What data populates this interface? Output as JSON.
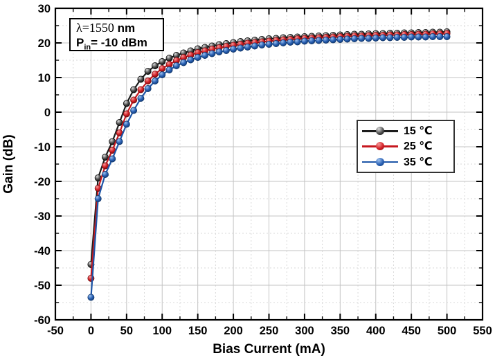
{
  "annotation": {
    "lambda": "λ=1550",
    "lambda_unit": " nm",
    "pin_base": "P",
    "pin_sub": "in",
    "pin_rest": "= -10 dBm"
  },
  "chart_data": {
    "type": "line",
    "title": "",
    "xlabel": "Bias Current (mA)",
    "ylabel": "Gain (dB)",
    "xlim": [
      -50,
      550
    ],
    "ylim": [
      -60,
      30
    ],
    "xticks": [
      -50,
      0,
      50,
      100,
      150,
      200,
      250,
      300,
      350,
      400,
      450,
      500,
      550
    ],
    "yticks": [
      -60,
      -50,
      -40,
      -30,
      -20,
      -10,
      0,
      10,
      20,
      30
    ],
    "x_minor_step": 25,
    "y_minor_step": 5,
    "grid": "major-solid-gray, minor-dotted",
    "legend_position": "right-center",
    "x": [
      0,
      10,
      20,
      30,
      40,
      50,
      60,
      70,
      80,
      90,
      100,
      110,
      120,
      130,
      140,
      150,
      160,
      170,
      180,
      190,
      200,
      210,
      220,
      230,
      240,
      250,
      260,
      270,
      280,
      290,
      300,
      310,
      320,
      330,
      340,
      350,
      360,
      370,
      380,
      390,
      400,
      410,
      420,
      430,
      440,
      450,
      460,
      470,
      480,
      490,
      500
    ],
    "series": [
      {
        "name": "15 ℃",
        "line_color": "#1c1c1c",
        "marker_light": "#dcdcdc",
        "marker_mid": "#4d4d4d",
        "marker_dark": "#050505",
        "edge_color": "#000000",
        "values": [
          -44,
          -19,
          -13,
          -8.5,
          -3,
          2.5,
          6.5,
          9.5,
          11.8,
          13.4,
          14.6,
          15.6,
          16.4,
          17.1,
          17.7,
          18.3,
          18.7,
          19.1,
          19.5,
          19.8,
          20.1,
          20.4,
          20.6,
          20.8,
          21.0,
          21.2,
          21.3,
          21.5,
          21.6,
          21.7,
          21.8,
          21.9,
          22.0,
          22.1,
          22.2,
          22.3,
          22.4,
          22.5,
          22.5,
          22.6,
          22.7,
          22.7,
          22.8,
          22.8,
          22.9,
          22.9,
          23.0,
          23.0,
          23.1,
          23.1,
          23.2
        ]
      },
      {
        "name": "25 ℃",
        "line_color": "#c6171e",
        "marker_light": "#f59a9a",
        "marker_mid": "#d42026",
        "marker_dark": "#7e0a0e",
        "edge_color": "#6e090c",
        "values": [
          -48,
          -22,
          -15.5,
          -11,
          -6,
          -0.5,
          3.5,
          6.5,
          9,
          11,
          12.6,
          13.8,
          14.9,
          15.8,
          16.5,
          17.2,
          17.7,
          18.2,
          18.6,
          19.0,
          19.3,
          19.6,
          19.9,
          20.1,
          20.3,
          20.5,
          20.7,
          20.9,
          21.0,
          21.2,
          21.3,
          21.4,
          21.5,
          21.6,
          21.7,
          21.8,
          21.9,
          22.0,
          22.0,
          22.1,
          22.2,
          22.2,
          22.3,
          22.3,
          22.4,
          22.4,
          22.5,
          22.5,
          22.6,
          22.6,
          22.7
        ]
      },
      {
        "name": "35 ℃",
        "line_color": "#1d55a8",
        "marker_light": "#9fc2ef",
        "marker_mid": "#2a61b4",
        "marker_dark": "#103a76",
        "edge_color": "#0e3467",
        "values": [
          -53.5,
          -25,
          -18,
          -13.5,
          -8.5,
          -3.5,
          0.5,
          4,
          6.8,
          9,
          10.8,
          12.2,
          13.4,
          14.3,
          15.1,
          15.8,
          16.4,
          16.9,
          17.4,
          17.8,
          18.2,
          18.5,
          18.8,
          19.1,
          19.4,
          19.6,
          19.8,
          20.0,
          20.2,
          20.3,
          20.5,
          20.6,
          20.7,
          20.8,
          20.9,
          21.0,
          21.1,
          21.2,
          21.3,
          21.3,
          21.4,
          21.5,
          21.5,
          21.6,
          21.6,
          21.7,
          21.7,
          21.7,
          21.8,
          21.8,
          21.8
        ]
      }
    ]
  }
}
